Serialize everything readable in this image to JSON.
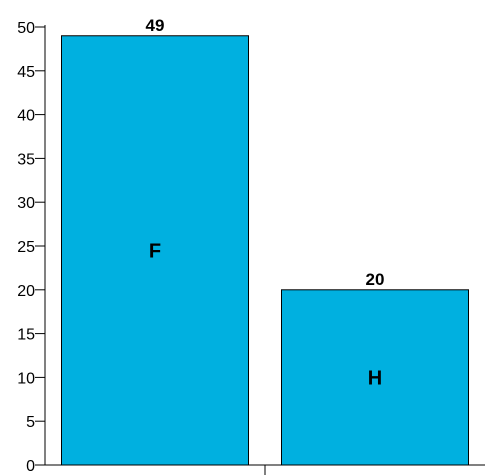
{
  "chart_data": {
    "type": "bar",
    "categories": [
      "F",
      "H"
    ],
    "values": [
      49,
      20
    ],
    "title": "",
    "xlabel": "",
    "ylabel": "",
    "ylim": [
      0,
      50
    ],
    "yticks": [
      0,
      5,
      10,
      15,
      20,
      25,
      30,
      35,
      40,
      45,
      50
    ],
    "grid": false,
    "bar_color": "#00b0e0",
    "bar_edge_color": "#000000"
  }
}
